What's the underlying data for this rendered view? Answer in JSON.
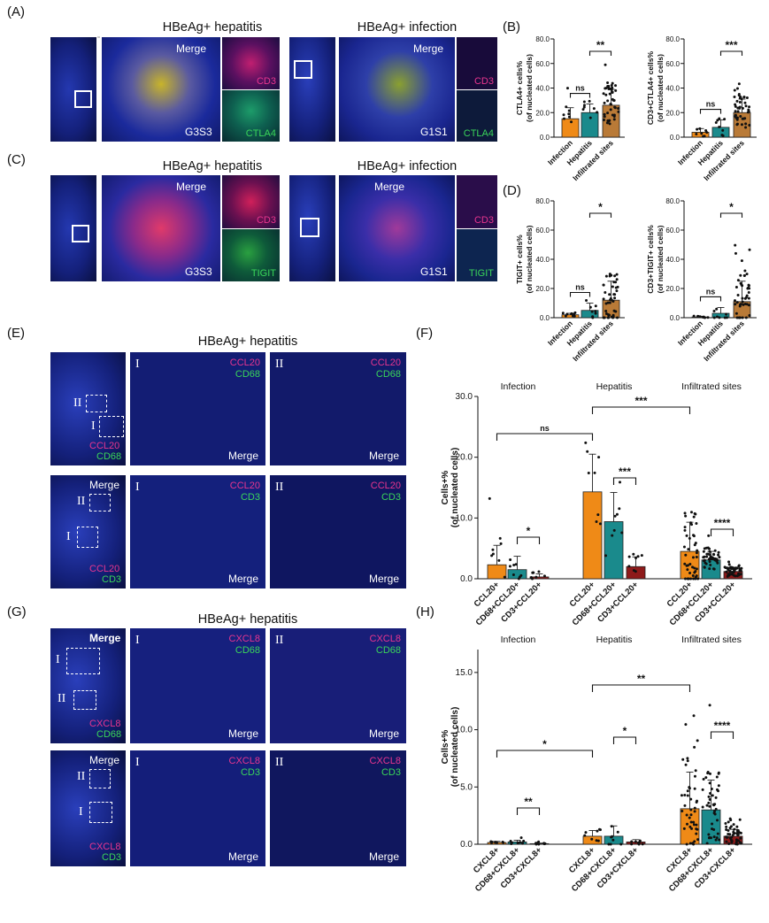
{
  "panel_letters": [
    "(A)",
    "(B)",
    "(C)",
    "(D)",
    "(E)",
    "(F)",
    "(G)",
    "(H)"
  ],
  "titles": {
    "a_left": "HBeAg+ hepatitis",
    "a_right": "HBeAg+ infection",
    "c_left": "HBeAg+ hepatitis",
    "c_right": "HBeAg+ infection",
    "e": "HBeAg+ hepatitis",
    "g": "HBeAg+ hepatitis"
  },
  "overlays": {
    "merge": "Merge",
    "cd3": "CD3",
    "ctla4": "CTLA4",
    "tigit": "TIGIT",
    "ccl20": "CCL20",
    "cd68": "CD68",
    "cxcl8": "CXCL8",
    "g3s3": "G3S3",
    "g1s1": "G1S1",
    "roman_1": "I",
    "roman_2": "II"
  },
  "colors": {
    "orange": "#ef8a17",
    "teal": "#1a8a8c",
    "brown": "#b97a37",
    "darkred": "#8e1a1a",
    "red_stain": "#e8358f",
    "green_stain": "#3ad65a",
    "nuclei": "#1e2fb8"
  },
  "chart_data": [
    {
      "id": "B1",
      "type": "bar",
      "categories": [
        "Infection",
        "Hepatitis",
        "Infiltrated sites"
      ],
      "values": [
        15,
        20,
        26
      ],
      "errors": [
        9,
        7,
        13
      ],
      "ylabel": "CTLA4+ cells%\n(of nucleated cells)",
      "ylim": [
        0,
        80
      ],
      "yticks": [
        "0.0",
        "20.0",
        "40.0",
        "60.0",
        "80.0"
      ],
      "sig": [
        {
          "from": 0,
          "to": 1,
          "label": "ns"
        },
        {
          "from": 1,
          "to": 2,
          "label": "**"
        }
      ]
    },
    {
      "id": "B2",
      "type": "bar",
      "categories": [
        "Infection",
        "Hepatitis",
        "Infiltrated sites"
      ],
      "values": [
        4,
        8,
        20
      ],
      "errors": [
        3,
        6,
        11
      ],
      "ylabel": "CD3+CTLA4+ cells%\n(of nucleated cells)",
      "ylim": [
        0,
        80
      ],
      "yticks": [
        "0.0",
        "20.0",
        "40.0",
        "60.0",
        "80.0"
      ],
      "sig": [
        {
          "from": 0,
          "to": 1,
          "label": "ns"
        },
        {
          "from": 1,
          "to": 2,
          "label": "***"
        }
      ]
    },
    {
      "id": "D1",
      "type": "bar",
      "categories": [
        "Infection",
        "Hepatitis",
        "Infiltrated sites"
      ],
      "values": [
        2,
        5,
        12
      ],
      "errors": [
        1,
        5,
        13
      ],
      "ylabel": "TIGIT+ cells%\n(of nucleated cells)",
      "ylim": [
        0,
        80
      ],
      "yticks": [
        "0.0",
        "20.0",
        "40.0",
        "60.0",
        "80.0"
      ],
      "sig": [
        {
          "from": 0,
          "to": 1,
          "label": "ns"
        },
        {
          "from": 1,
          "to": 2,
          "label": "*"
        }
      ]
    },
    {
      "id": "D2",
      "type": "bar",
      "categories": [
        "Infection",
        "Hepatitis",
        "Infiltrated sites"
      ],
      "values": [
        0.5,
        3,
        11
      ],
      "errors": [
        0.5,
        4,
        14
      ],
      "ylabel": "CD3+TIGIT+ cells%\n(of nucleated cells)",
      "ylim": [
        0,
        80
      ],
      "yticks": [
        "0.0",
        "20.0",
        "40.0",
        "60.0",
        "80.0"
      ],
      "sig": [
        {
          "from": 0,
          "to": 1,
          "label": "ns"
        },
        {
          "from": 1,
          "to": 2,
          "label": "*"
        }
      ]
    },
    {
      "id": "F",
      "type": "bar",
      "groups": [
        "Infection",
        "Hepatitis",
        "Infiltrated sites"
      ],
      "categories": [
        "CCL20+",
        "CD68+CCL20+",
        "CD3+CCL20+",
        "CCL20+",
        "CD68+CCL20+",
        "CD3+CCL20+",
        "CCL20+",
        "CD68+CCL20+",
        "CD3+CCL20+"
      ],
      "values": [
        2.3,
        1.5,
        0.3,
        14.3,
        9.4,
        2.0,
        4.5,
        3.1,
        1.2
      ],
      "errors": [
        3.2,
        2.2,
        0.5,
        6.2,
        4.8,
        1.6,
        4.8,
        1.4,
        0.7
      ],
      "ylabel": "Cells+%\n(of nucleated cells)",
      "ylim": [
        0,
        30
      ],
      "yticks": [
        "0.0",
        "10.0",
        "20.0",
        "30.0"
      ],
      "sig": [
        {
          "from": 0,
          "to": 3,
          "label": "ns"
        },
        {
          "from": 3,
          "to": 6,
          "label": "***"
        },
        {
          "from": 1,
          "to": 2,
          "label": "*"
        },
        {
          "from": 4,
          "to": 5,
          "label": "***"
        },
        {
          "from": 7,
          "to": 8,
          "label": "****"
        }
      ]
    },
    {
      "id": "H",
      "type": "bar",
      "groups": [
        "Infection",
        "Hepatitis",
        "Infiltrated sites"
      ],
      "categories": [
        "CXCL8+",
        "CD68+CXCL8+",
        "CD3+CXCL8+",
        "CXCL8+",
        "CD68+CXCL8+",
        "CD3+CXCL8+",
        "CXCL8+",
        "CD68+CXCL8+",
        "CD3+CXCL8+"
      ],
      "values": [
        0.15,
        0.2,
        0.05,
        0.7,
        0.7,
        0.2,
        3.1,
        3.0,
        0.7
      ],
      "errors": [
        0.1,
        0.15,
        0.05,
        0.5,
        0.9,
        0.2,
        3.2,
        2.6,
        0.6
      ],
      "ylabel": "Cells+%\n(of nucleated cells)",
      "ylim": [
        0,
        17
      ],
      "yticks": [
        "0.0",
        "5.0",
        "10.0",
        "15.0"
      ],
      "sig": [
        {
          "from": 0,
          "to": 3,
          "label": "*"
        },
        {
          "from": 3,
          "to": 6,
          "label": "**"
        },
        {
          "from": 1,
          "to": 2,
          "label": "**"
        },
        {
          "from": 4,
          "to": 5,
          "label": "*"
        },
        {
          "from": 7,
          "to": 8,
          "label": "****"
        }
      ]
    }
  ]
}
